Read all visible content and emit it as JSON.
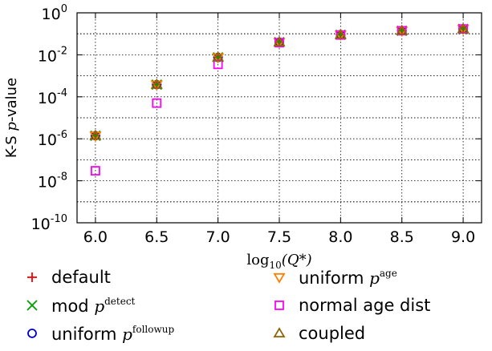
{
  "chart_data": {
    "type": "scatter",
    "x": [
      6.0,
      6.5,
      7.0,
      7.5,
      8.0,
      8.5,
      9.0
    ],
    "xticks": [
      "6.0",
      "6.5",
      "7.0",
      "7.5",
      "8.0",
      "8.5",
      "9.0"
    ],
    "xlim": [
      5.85,
      9.15
    ],
    "xlabel": {
      "prefix": "log",
      "sub": "10",
      "arg": "(Q*)"
    },
    "ylabel": {
      "prefix": "K-S ",
      "italic": "p",
      "suffix": "-value"
    },
    "yscale": "log",
    "ylim": [
      1e-10,
      1
    ],
    "yticks": [
      {
        "base": "10",
        "exp": "-10"
      },
      {
        "base": "10",
        "exp": "-8"
      },
      {
        "base": "10",
        "exp": "-6"
      },
      {
        "base": "10",
        "exp": "-4"
      },
      {
        "base": "10",
        "exp": "-2"
      },
      {
        "base": "10",
        "exp": "0"
      }
    ],
    "grid": true,
    "legend_position": "below",
    "series": [
      {
        "name": "default",
        "label_text": "default",
        "label_math": "",
        "label_sup": "",
        "marker": "plus",
        "color": "#ff0000",
        "values": [
          1.4e-06,
          0.00038,
          0.0075,
          0.04,
          0.09,
          0.14,
          0.17
        ]
      },
      {
        "name": "mod p^detect",
        "label_text": "mod ",
        "label_math": "p",
        "label_sup": "detect",
        "marker": "x",
        "color": "#00a000",
        "values": [
          1.4e-06,
          0.00038,
          0.0075,
          0.04,
          0.09,
          0.14,
          0.17
        ]
      },
      {
        "name": "uniform p^followup",
        "label_text": "uniform ",
        "label_math": "p",
        "label_sup": "followup",
        "marker": "circle",
        "color": "#0000cc",
        "values": [
          1.4e-06,
          0.00038,
          0.0075,
          0.04,
          0.09,
          0.14,
          0.17
        ]
      },
      {
        "name": "uniform p^age",
        "label_text": "uniform ",
        "label_math": "p",
        "label_sup": "age",
        "marker": "triangle-down",
        "color": "#ff7f00",
        "values": [
          1.4e-06,
          0.00038,
          0.0075,
          0.04,
          0.09,
          0.14,
          0.17
        ]
      },
      {
        "name": "normal age dist",
        "label_text": "normal age dist",
        "label_math": "",
        "label_sup": "",
        "marker": "square",
        "color": "#ff00ff",
        "values": [
          3e-08,
          5e-05,
          0.0035,
          0.038,
          0.088,
          0.14,
          0.17
        ]
      },
      {
        "name": "coupled",
        "label_text": "coupled",
        "label_math": "",
        "label_sup": "",
        "marker": "triangle-up",
        "color": "#8b6508",
        "values": [
          1.4e-06,
          0.00038,
          0.0075,
          0.04,
          0.09,
          0.14,
          0.17
        ]
      }
    ]
  }
}
